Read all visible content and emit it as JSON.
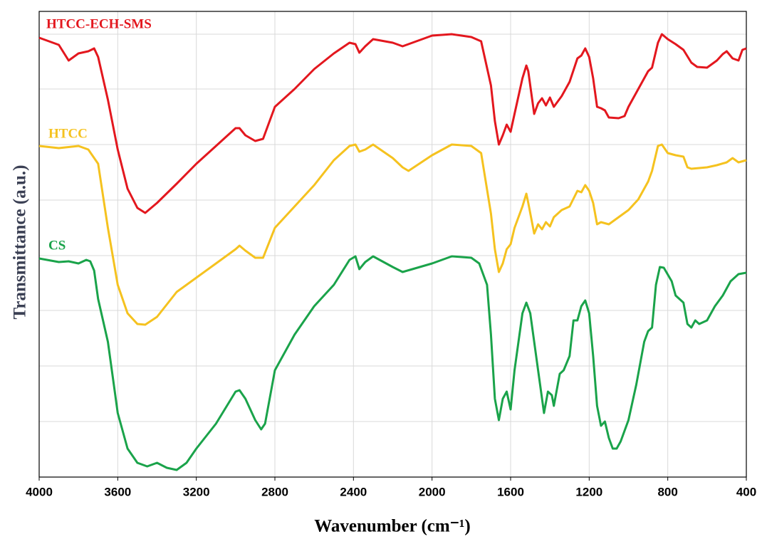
{
  "chart_data": {
    "type": "line",
    "x_label": "Wavenumber (cm⁻¹)",
    "y_label": "Transmittance (a.u.)",
    "xlim": [
      4000,
      400
    ],
    "xticks": [
      4000,
      3600,
      3200,
      2800,
      2400,
      2000,
      1600,
      1200,
      800,
      400
    ],
    "ylim": [
      0,
      654
    ],
    "yticks": [
      78,
      156,
      234,
      311,
      389,
      467,
      545,
      622
    ],
    "show_ytick_labels": false,
    "grid": true,
    "series": [
      {
        "name": "HTCC-ECH-SMS",
        "color": "#e3171e",
        "x": [
          4000,
          3900,
          3850,
          3800,
          3750,
          3720,
          3700,
          3650,
          3600,
          3550,
          3500,
          3460,
          3400,
          3300,
          3200,
          3100,
          3000,
          2980,
          2950,
          2900,
          2860,
          2800,
          2700,
          2600,
          2500,
          2420,
          2390,
          2370,
          2340,
          2300,
          2200,
          2150,
          2100,
          2000,
          1900,
          1800,
          1750,
          1700,
          1680,
          1660,
          1640,
          1620,
          1600,
          1580,
          1540,
          1520,
          1510,
          1480,
          1460,
          1440,
          1420,
          1400,
          1380,
          1340,
          1300,
          1260,
          1240,
          1220,
          1200,
          1180,
          1160,
          1140,
          1120,
          1100,
          1050,
          1020,
          1000,
          950,
          900,
          880,
          850,
          830,
          800,
          760,
          720,
          680,
          650,
          600,
          550,
          520,
          500,
          470,
          440,
          420,
          400
        ],
        "values": [
          617,
          607,
          585,
          595,
          598,
          602,
          590,
          530,
          460,
          405,
          378,
          371,
          385,
          412,
          440,
          465,
          490,
          490,
          480,
          472,
          475,
          520,
          545,
          573,
          595,
          610,
          608,
          596,
          605,
          615,
          610,
          605,
          610,
          620,
          622,
          618,
          612,
          550,
          500,
          467,
          480,
          495,
          485,
          510,
          560,
          578,
          570,
          510,
          525,
          532,
          522,
          533,
          520,
          535,
          555,
          588,
          592,
          602,
          590,
          560,
          520,
          518,
          515,
          505,
          504,
          507,
          520,
          545,
          570,
          575,
          610,
          622,
          615,
          608,
          600,
          582,
          576,
          575,
          585,
          594,
          598,
          588,
          585,
          600,
          602
        ]
      },
      {
        "name": "HTCC",
        "color": "#f5c21f",
        "x": [
          4000,
          3900,
          3800,
          3750,
          3700,
          3650,
          3600,
          3550,
          3500,
          3460,
          3400,
          3300,
          3200,
          3100,
          3000,
          2980,
          2950,
          2900,
          2860,
          2800,
          2700,
          2600,
          2500,
          2420,
          2390,
          2370,
          2340,
          2300,
          2200,
          2150,
          2120,
          2000,
          1900,
          1800,
          1750,
          1700,
          1680,
          1660,
          1640,
          1620,
          1600,
          1580,
          1540,
          1520,
          1510,
          1480,
          1460,
          1440,
          1420,
          1400,
          1380,
          1340,
          1300,
          1260,
          1240,
          1220,
          1200,
          1180,
          1160,
          1140,
          1100,
          1050,
          1000,
          950,
          900,
          880,
          850,
          830,
          800,
          760,
          720,
          700,
          680,
          600,
          550,
          500,
          470,
          440,
          400
        ],
        "values": [
          465,
          462,
          465,
          460,
          440,
          350,
          270,
          230,
          215,
          214,
          225,
          260,
          280,
          300,
          320,
          325,
          318,
          308,
          308,
          350,
          380,
          410,
          445,
          465,
          467,
          457,
          460,
          467,
          448,
          435,
          430,
          452,
          467,
          465,
          455,
          370,
          320,
          288,
          300,
          320,
          327,
          350,
          380,
          398,
          385,
          342,
          355,
          348,
          358,
          352,
          365,
          375,
          380,
          402,
          400,
          410,
          402,
          385,
          355,
          358,
          355,
          365,
          375,
          390,
          415,
          430,
          465,
          467,
          455,
          452,
          450,
          435,
          433,
          435,
          438,
          442,
          448,
          442,
          445
        ]
      },
      {
        "name": "CS",
        "color": "#1aa34a",
        "x": [
          4000,
          3900,
          3850,
          3800,
          3760,
          3740,
          3720,
          3700,
          3650,
          3620,
          3600,
          3550,
          3500,
          3450,
          3400,
          3350,
          3300,
          3250,
          3200,
          3100,
          3000,
          2980,
          2950,
          2900,
          2870,
          2850,
          2800,
          2700,
          2600,
          2500,
          2420,
          2390,
          2370,
          2340,
          2300,
          2200,
          2150,
          2100,
          2000,
          1900,
          1800,
          1760,
          1720,
          1700,
          1680,
          1660,
          1640,
          1620,
          1600,
          1580,
          1540,
          1520,
          1500,
          1460,
          1430,
          1410,
          1390,
          1380,
          1350,
          1330,
          1300,
          1280,
          1260,
          1240,
          1220,
          1200,
          1180,
          1160,
          1140,
          1120,
          1100,
          1080,
          1060,
          1040,
          1000,
          960,
          920,
          900,
          880,
          860,
          840,
          820,
          780,
          760,
          720,
          700,
          680,
          660,
          640,
          600,
          560,
          520,
          480,
          440,
          400
        ],
        "values": [
          307,
          302,
          303,
          300,
          305,
          303,
          290,
          250,
          190,
          130,
          90,
          40,
          20,
          15,
          20,
          13,
          10,
          20,
          40,
          75,
          120,
          122,
          110,
          80,
          67,
          75,
          150,
          200,
          240,
          270,
          305,
          310,
          292,
          302,
          310,
          295,
          288,
          292,
          300,
          310,
          308,
          300,
          270,
          200,
          110,
          80,
          110,
          120,
          95,
          150,
          230,
          245,
          230,
          150,
          90,
          120,
          115,
          100,
          145,
          150,
          170,
          220,
          220,
          240,
          248,
          230,
          170,
          100,
          72,
          78,
          55,
          40,
          40,
          50,
          80,
          130,
          190,
          205,
          210,
          270,
          295,
          294,
          275,
          255,
          245,
          215,
          210,
          220,
          215,
          220,
          240,
          255,
          275,
          285,
          287
        ]
      }
    ]
  }
}
